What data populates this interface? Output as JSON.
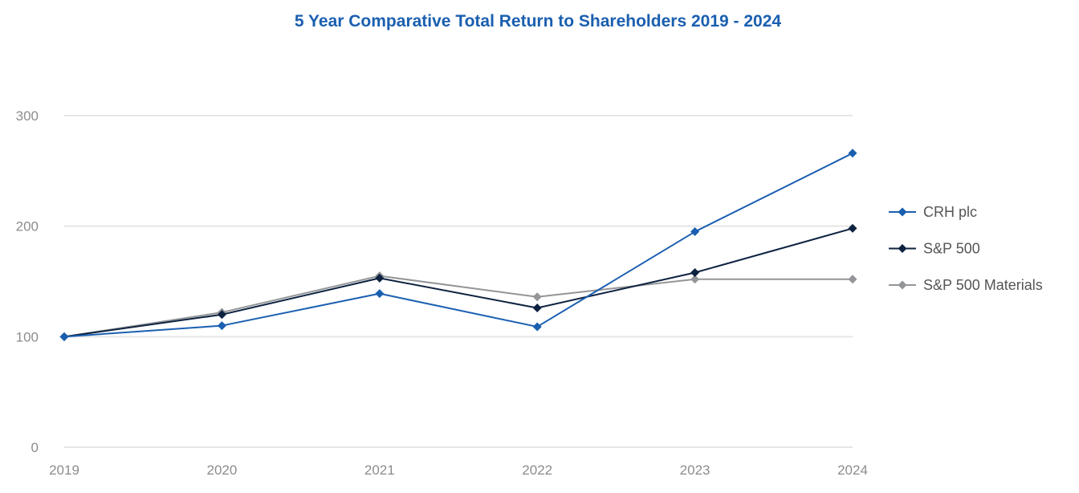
{
  "chart_data": {
    "type": "line",
    "title": "5 Year Comparative Total Return to Shareholders 2019 - 2024",
    "xlabel": "",
    "ylabel": "",
    "x": [
      "2019",
      "2020",
      "2021",
      "2022",
      "2023",
      "2024"
    ],
    "yticks": [
      "0",
      "100",
      "200",
      "300"
    ],
    "ylim": [
      0,
      300
    ],
    "grid": true,
    "legend_position": "right",
    "series": [
      {
        "name": "CRH plc",
        "values": [
          100,
          110,
          139,
          109,
          195,
          266
        ],
        "color": "#1a5fb0"
      },
      {
        "name": "S&P 500",
        "values": [
          100,
          120,
          153,
          126,
          158,
          198
        ],
        "color": "#0d2240"
      },
      {
        "name": "S&P 500 Materials",
        "values": [
          100,
          122,
          155,
          136,
          152,
          152
        ],
        "color": "#939598"
      }
    ]
  },
  "colors": {
    "title": "#1a5fb0",
    "axis_text": "#8c8c8c",
    "gridline": "#e6e6e6",
    "legend_text": "#555555"
  }
}
